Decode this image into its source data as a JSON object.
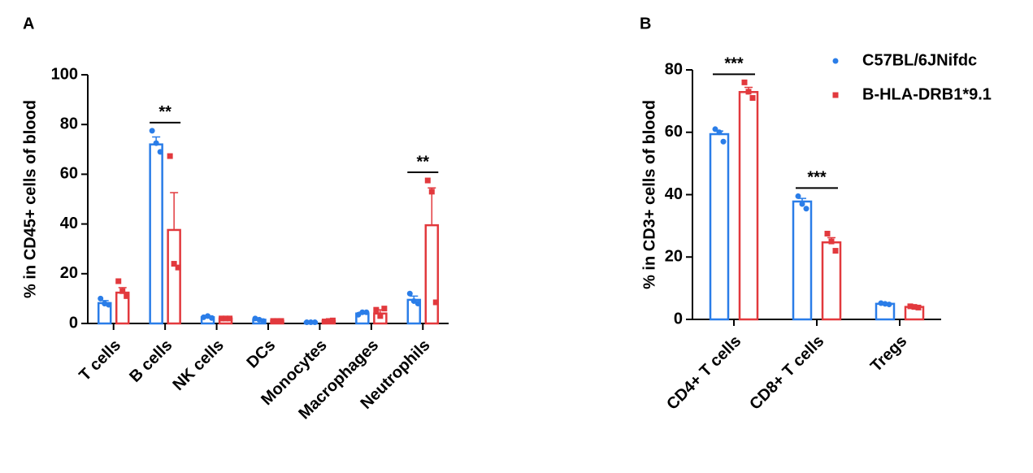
{
  "chart_data": [
    {
      "type": "bar",
      "panel": "A",
      "ylabel": "% in CD45+ cells of blood",
      "categories": [
        "T cells",
        "B cells",
        "NK cells",
        "DCs",
        "Monocytes",
        "Macrophages",
        "Neutrophils"
      ],
      "ylim": [
        0,
        100
      ],
      "yticks": [
        0,
        20,
        40,
        60,
        80,
        100
      ],
      "series": [
        {
          "color": "#2a7de8",
          "marker": "circle",
          "values": [
            8.2,
            72,
            2.5,
            1.5,
            0.5,
            4,
            9.5
          ],
          "errors": [
            1,
            3,
            0.3,
            0.3,
            0.1,
            0.5,
            1.5
          ],
          "points": [
            [
              10,
              8,
              7.5
            ],
            [
              77.5,
              72.5,
              69
            ],
            [
              2.5,
              3,
              2.2
            ],
            [
              2,
              1.5,
              1
            ],
            [
              0.5,
              0.5,
              0.5
            ],
            [
              3.5,
              4.5,
              4.5
            ],
            [
              12,
              9,
              8
            ]
          ]
        },
        {
          "color": "#e2393d",
          "marker": "square",
          "values": [
            12.4,
            37.6,
            2,
            1,
            1,
            4,
            39.5
          ],
          "errors": [
            2,
            15,
            0.2,
            0.2,
            0.2,
            1.5,
            15
          ],
          "points": [
            [
              17,
              13,
              11
            ],
            [
              67.3,
              24,
              22.5
            ],
            [
              2,
              2,
              2
            ],
            [
              1,
              1,
              1
            ],
            [
              0.8,
              1,
              1.2
            ],
            [
              5.5,
              3,
              6
            ],
            [
              57.5,
              53,
              8.5
            ]
          ]
        }
      ],
      "annotations": [
        {
          "category": 1,
          "text": "**"
        },
        {
          "category": 6,
          "text": "**"
        }
      ]
    },
    {
      "type": "bar",
      "panel": "B",
      "ylabel": "% in CD3+ cells of blood",
      "categories": [
        "CD4+ T cells",
        "CD8+ T cells",
        "Tregs"
      ],
      "ylim": [
        0,
        80
      ],
      "yticks": [
        0,
        20,
        40,
        60,
        80
      ],
      "legend": "upper right",
      "series": [
        {
          "name": "C57BL/6JNifdc",
          "color": "#2a7de8",
          "marker": "circle",
          "values": [
            59.4,
            37.8,
            5
          ],
          "errors": [
            1,
            1,
            0.2
          ],
          "points": [
            [
              61,
              60,
              57
            ],
            [
              39.5,
              37,
              35.5
            ],
            [
              5.2,
              5,
              4.8
            ]
          ]
        },
        {
          "name": "B-HLA-DRB1*9.1",
          "color": "#e2393d",
          "marker": "square",
          "values": [
            72.9,
            24.7,
            4
          ],
          "errors": [
            1.5,
            1.5,
            0.2
          ],
          "points": [
            [
              76,
              73,
              71
            ],
            [
              27.5,
              25,
              22
            ],
            [
              4.2,
              4,
              3.8
            ]
          ]
        }
      ],
      "annotations": [
        {
          "category": 0,
          "text": "***"
        },
        {
          "category": 1,
          "text": "***"
        }
      ]
    }
  ]
}
